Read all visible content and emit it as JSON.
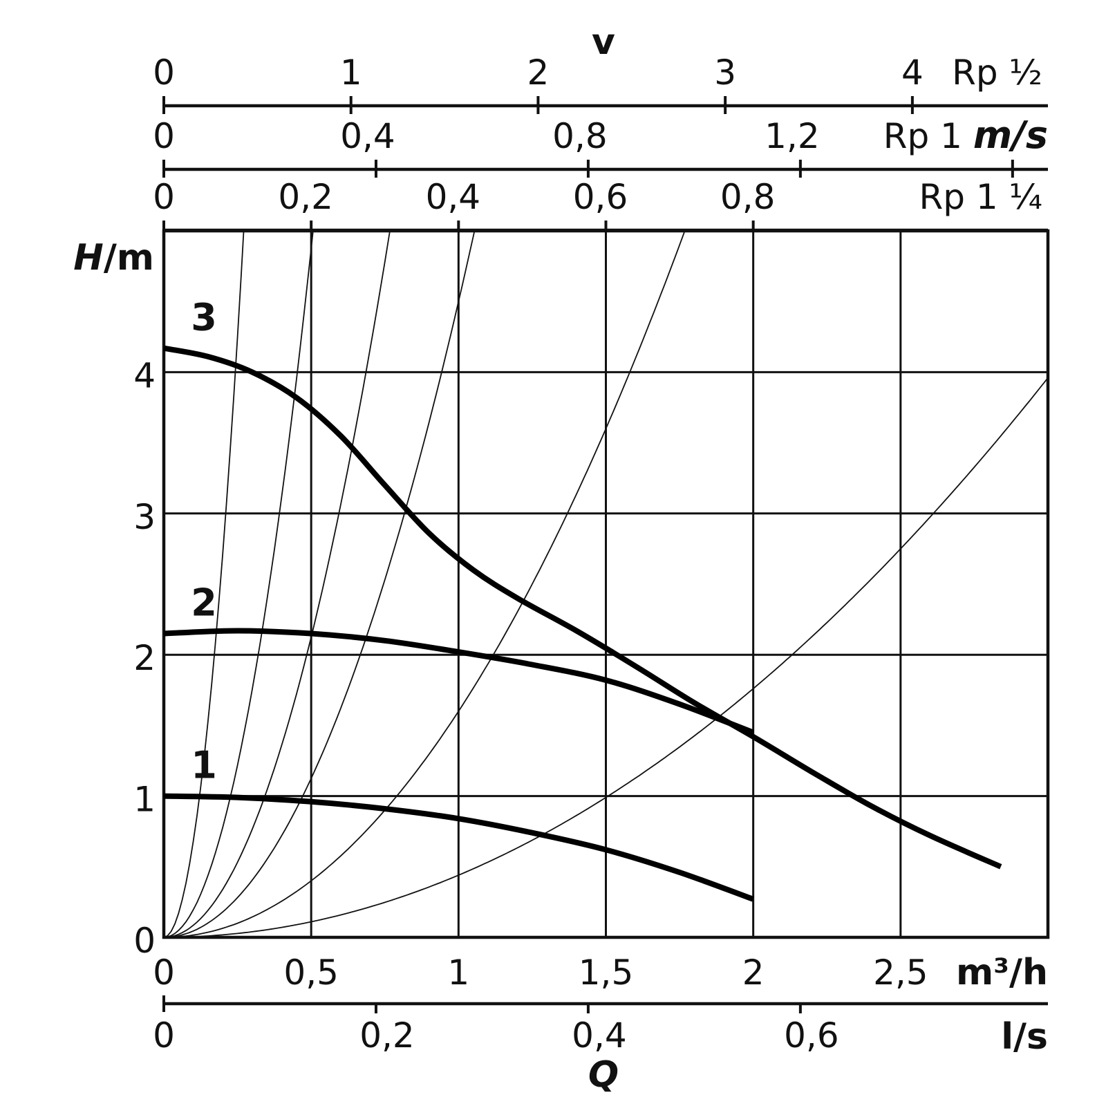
{
  "chart_data": {
    "type": "line",
    "letters": {
      "v": "v",
      "q": "Q"
    },
    "y_axis": {
      "label_italic": "H",
      "label_rest": "/m",
      "ylim": [
        0,
        5
      ],
      "ticks": [
        {
          "v": 0,
          "t": "0"
        },
        {
          "v": 1,
          "t": "1"
        },
        {
          "v": 2,
          "t": "2"
        },
        {
          "v": 3,
          "t": "3"
        },
        {
          "v": 4,
          "t": "4"
        }
      ]
    },
    "x_axis_primary": {
      "unit": "m³/h",
      "xlim": [
        0,
        3
      ],
      "ticks": [
        {
          "v": 0,
          "t": "0"
        },
        {
          "v": 0.5,
          "t": "0,5"
        },
        {
          "v": 1,
          "t": "1"
        },
        {
          "v": 1.5,
          "t": "1,5"
        },
        {
          "v": 2,
          "t": "2"
        },
        {
          "v": 2.5,
          "t": "2,5"
        }
      ]
    },
    "x_axis_secondary": {
      "unit": "l/s",
      "ticks": [
        {
          "v": 0,
          "t": "0"
        },
        {
          "v": 0.2,
          "t": "0,2"
        },
        {
          "v": 0.4,
          "t": "0,4"
        },
        {
          "v": 0.6,
          "t": "0,6"
        }
      ]
    },
    "velocity_scales": [
      {
        "label": "Rp ½",
        "ticks": [
          {
            "v": 0,
            "t": "0"
          },
          {
            "v": 1,
            "t": "1"
          },
          {
            "v": 2,
            "t": "2"
          },
          {
            "v": 3,
            "t": "3"
          },
          {
            "v": 4,
            "t": "4"
          }
        ],
        "flow_per_unit": 0.635
      },
      {
        "label": "Rp 1",
        "unit": "m/s",
        "ticks": [
          {
            "v": 0,
            "t": "0"
          },
          {
            "v": 0.4,
            "t": "0,4"
          },
          {
            "v": 0.8,
            "t": "0,8"
          },
          {
            "v": 1.2,
            "t": "1,2"
          }
        ],
        "minor_ticks": [
          1.6
        ],
        "flow_per_unit": 1.8
      },
      {
        "label": "Rp 1 ¼",
        "ticks": [
          {
            "v": 0,
            "t": "0"
          },
          {
            "v": 0.2,
            "t": "0,2"
          },
          {
            "v": 0.4,
            "t": "0,4"
          },
          {
            "v": 0.6,
            "t": "0,6"
          },
          {
            "v": 0.8,
            "t": "0,8"
          }
        ],
        "flow_per_unit": 2.5
      }
    ],
    "pump_curves": [
      {
        "name": "1",
        "points": [
          [
            0,
            1.0
          ],
          [
            0.25,
            0.99
          ],
          [
            0.5,
            0.96
          ],
          [
            0.75,
            0.91
          ],
          [
            1.0,
            0.84
          ],
          [
            1.25,
            0.74
          ],
          [
            1.5,
            0.62
          ],
          [
            1.75,
            0.46
          ],
          [
            2.0,
            0.27
          ]
        ]
      },
      {
        "name": "2",
        "points": [
          [
            0,
            2.15
          ],
          [
            0.25,
            2.17
          ],
          [
            0.5,
            2.15
          ],
          [
            0.75,
            2.1
          ],
          [
            1.0,
            2.02
          ],
          [
            1.25,
            1.93
          ],
          [
            1.5,
            1.82
          ],
          [
            1.75,
            1.65
          ],
          [
            2.0,
            1.45
          ]
        ]
      },
      {
        "name": "3",
        "points": [
          [
            0,
            4.17
          ],
          [
            0.15,
            4.11
          ],
          [
            0.3,
            4.0
          ],
          [
            0.45,
            3.82
          ],
          [
            0.6,
            3.55
          ],
          [
            0.75,
            3.2
          ],
          [
            0.9,
            2.86
          ],
          [
            1.05,
            2.6
          ],
          [
            1.2,
            2.4
          ],
          [
            1.4,
            2.17
          ],
          [
            1.6,
            1.92
          ],
          [
            1.8,
            1.66
          ],
          [
            2.0,
            1.42
          ],
          [
            2.2,
            1.17
          ],
          [
            2.4,
            0.93
          ],
          [
            2.6,
            0.72
          ],
          [
            2.84,
            0.5
          ]
        ]
      }
    ],
    "system_curves_coefficients": [
      68,
      19.5,
      8.5,
      4.5,
      1.6,
      0.44
    ],
    "grid": true
  }
}
